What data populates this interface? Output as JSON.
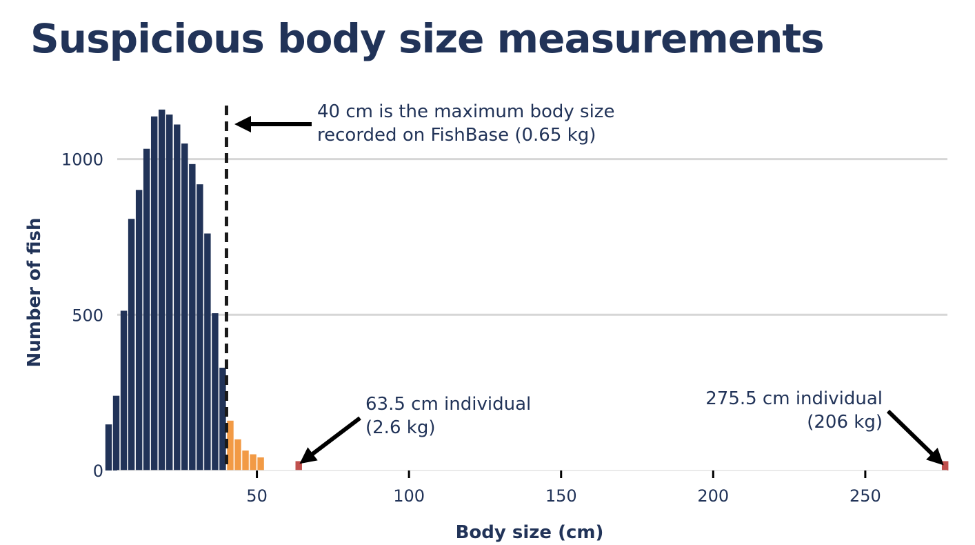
{
  "title": "Suspicious body size measurements",
  "chart_data": {
    "type": "bar",
    "xlabel": "Body size (cm)",
    "ylabel": "Number of fish",
    "xlim": [
      0,
      277
    ],
    "ylim": [
      0,
      1245
    ],
    "x_ticks": [
      50,
      100,
      150,
      200,
      250
    ],
    "y_ticks": [
      0,
      500,
      1000
    ],
    "grid": "horizontal",
    "bin_width": 2.5,
    "colors": {
      "normal": "#213358",
      "above_max": "#F29A45",
      "suspicious": "#C0504D",
      "reference_line": "#1a1a1a",
      "grid": "#d6d6d6"
    },
    "series": [
      {
        "bins_x": [
          0.0,
          2.5,
          5.0,
          7.5,
          10.0,
          12.5,
          15.0,
          17.5,
          20.0,
          22.5,
          25.0,
          27.5,
          30.0,
          32.5,
          35.0,
          37.5,
          40.0,
          42.5,
          45.0,
          47.5,
          50.0,
          62.5,
          275.0
        ],
        "counts": [
          148,
          240,
          513,
          808,
          901,
          1033,
          1137,
          1159,
          1143,
          1111,
          1050,
          984,
          919,
          761,
          505,
          330,
          160,
          100,
          64,
          52,
          42,
          30,
          30
        ],
        "category": [
          "normal",
          "normal",
          "normal",
          "normal",
          "normal",
          "normal",
          "normal",
          "normal",
          "normal",
          "normal",
          "normal",
          "normal",
          "normal",
          "normal",
          "normal",
          "normal",
          "above_max",
          "above_max",
          "above_max",
          "above_max",
          "above_max",
          "suspicious",
          "suspicious"
        ]
      }
    ],
    "reference_line": {
      "x": 40
    },
    "annotations": [
      {
        "lines": [
          "40 cm is the maximum body size",
          "recorded on FishBase (0.65 kg)"
        ],
        "points_to_x": 40
      },
      {
        "lines": [
          "63.5 cm individual",
          "(2.6 kg)"
        ],
        "points_to_x": 63.5
      },
      {
        "lines": [
          "275.5 cm individual",
          "(206 kg)"
        ],
        "points_to_x": 275.5
      }
    ]
  }
}
